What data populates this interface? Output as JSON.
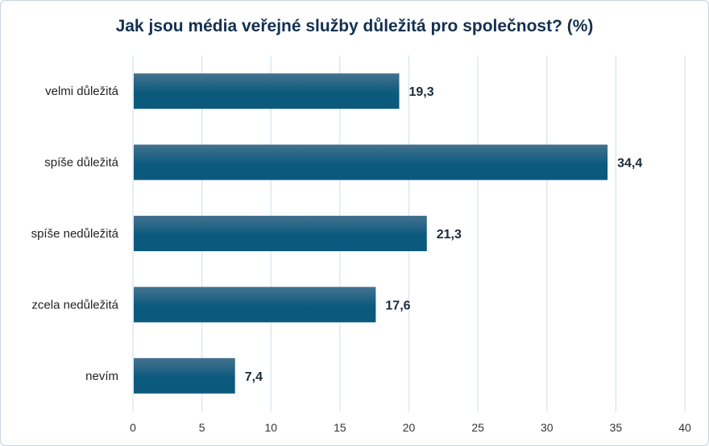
{
  "chart_data": {
    "type": "bar",
    "orientation": "horizontal",
    "title": "Jak jsou média veřejné služby důležitá pro společnost? (%)",
    "categories": [
      "velmi důležitá",
      "spíše důležitá",
      "spíše nedůležitá",
      "zcela nedůležitá",
      "nevím"
    ],
    "values": [
      19.3,
      34.4,
      21.3,
      17.6,
      7.4
    ],
    "data_labels": [
      "19,3",
      "34,4",
      "21,3",
      "17,6",
      "7,4"
    ],
    "xlim": [
      0,
      40
    ],
    "xticks": [
      0,
      5,
      10,
      15,
      20,
      25,
      30,
      35,
      40
    ],
    "grid": true,
    "bar_color": "#0b5a7e",
    "bar_color_top": "#45728f",
    "grid_color": "#d5e3f0",
    "title_color": "#14304f"
  }
}
